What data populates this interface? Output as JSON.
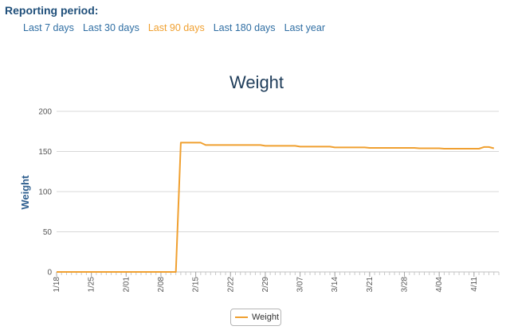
{
  "reporting": {
    "label": "Reporting period:",
    "options": [
      {
        "label": "Last 7 days",
        "active": false
      },
      {
        "label": "Last 30 days",
        "active": false
      },
      {
        "label": "Last 90 days",
        "active": true
      },
      {
        "label": "Last 180 days",
        "active": false
      },
      {
        "label": "Last year",
        "active": false
      }
    ]
  },
  "colors": {
    "series": "#f0a030",
    "link": "#2f6ea3",
    "active_link": "#f0a030",
    "grid": "#d8d8d8"
  },
  "chart_data": {
    "type": "line",
    "title": "Weight",
    "ylabel": "Weight",
    "xlabel": "",
    "ylim": [
      0,
      200
    ],
    "yticks": [
      0,
      50,
      100,
      150,
      200
    ],
    "xlim": [
      "1/18",
      "4/16"
    ],
    "xticks": [
      "1/18",
      "1/25",
      "2/01",
      "2/08",
      "2/15",
      "2/22",
      "2/29",
      "3/07",
      "3/14",
      "3/21",
      "3/28",
      "4/04",
      "4/11"
    ],
    "grid": true,
    "legend_position": "bottom-center",
    "series": [
      {
        "name": "Weight",
        "color": "#f0a030",
        "points": [
          {
            "x": "1/18",
            "y": 0
          },
          {
            "x": "2/11",
            "y": 0
          },
          {
            "x": "2/12",
            "y": 161
          },
          {
            "x": "2/16",
            "y": 161
          },
          {
            "x": "2/17",
            "y": 158
          },
          {
            "x": "2/28",
            "y": 158
          },
          {
            "x": "2/29",
            "y": 157
          },
          {
            "x": "3/06",
            "y": 157
          },
          {
            "x": "3/07",
            "y": 156
          },
          {
            "x": "3/13",
            "y": 156
          },
          {
            "x": "3/14",
            "y": 155
          },
          {
            "x": "3/20",
            "y": 155
          },
          {
            "x": "3/21",
            "y": 154.5
          },
          {
            "x": "3/30",
            "y": 154.5
          },
          {
            "x": "3/31",
            "y": 154
          },
          {
            "x": "4/04",
            "y": 154
          },
          {
            "x": "4/05",
            "y": 153.5
          },
          {
            "x": "4/12",
            "y": 153.5
          },
          {
            "x": "4/13",
            "y": 155.5
          },
          {
            "x": "4/14",
            "y": 155.5
          },
          {
            "x": "4/15",
            "y": 154
          }
        ]
      }
    ]
  }
}
